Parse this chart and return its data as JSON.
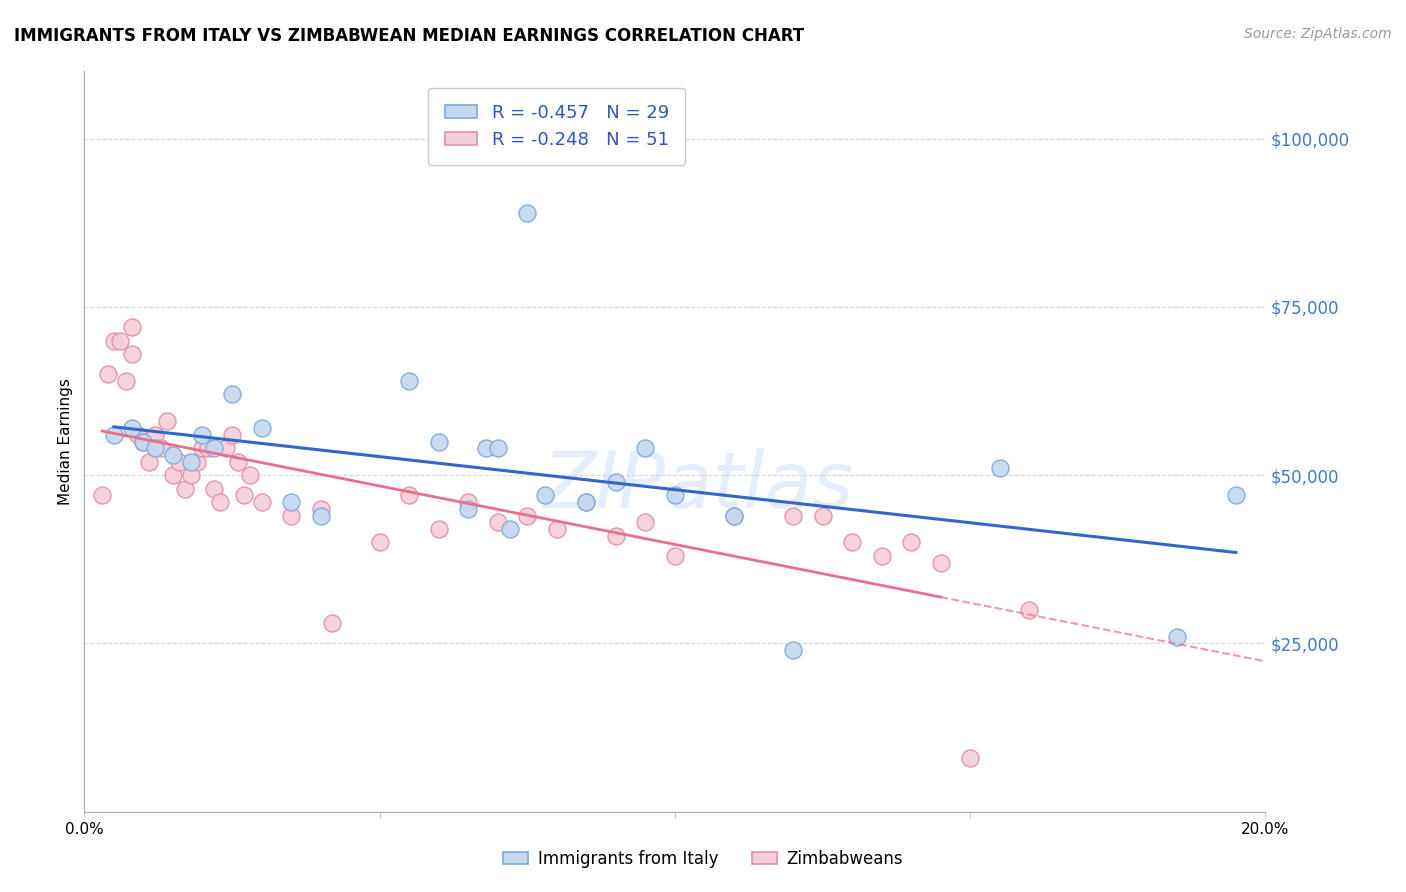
{
  "title": "IMMIGRANTS FROM ITALY VS ZIMBABWEAN MEDIAN EARNINGS CORRELATION CHART",
  "source": "Source: ZipAtlas.com",
  "ylabel": "Median Earnings",
  "xlim": [
    0,
    0.2
  ],
  "ylim": [
    0,
    110000
  ],
  "yticks": [
    0,
    25000,
    50000,
    75000,
    100000
  ],
  "ytick_labels": [
    "",
    "$25,000",
    "$50,000",
    "$75,000",
    "$100,000"
  ],
  "xticks": [
    0.0,
    0.05,
    0.1,
    0.15,
    0.2
  ],
  "xtick_labels": [
    "0.0%",
    "",
    "",
    "",
    "20.0%"
  ],
  "background_color": "#ffffff",
  "grid_color": "#d8d8d8",
  "italy_fill_color": "#c5d8f0",
  "italy_edge_color": "#7baad8",
  "zimbabwe_fill_color": "#f5cdd8",
  "zimbabwe_edge_color": "#e090a8",
  "italy_line_color": "#3366cc",
  "zimbabwe_line_color": "#e8708a",
  "italy_R": -0.457,
  "italy_N": 29,
  "zimbabwe_R": -0.248,
  "zimbabwe_N": 51,
  "watermark": "ZIPatlas",
  "legend_label_italy": "Immigrants from Italy",
  "legend_label_zimbabwe": "Zimbabweans",
  "italy_x": [
    0.005,
    0.008,
    0.01,
    0.012,
    0.015,
    0.018,
    0.02,
    0.022,
    0.025,
    0.03,
    0.035,
    0.04,
    0.055,
    0.06,
    0.065,
    0.068,
    0.07,
    0.072,
    0.075,
    0.078,
    0.085,
    0.09,
    0.095,
    0.1,
    0.11,
    0.12,
    0.155,
    0.185,
    0.195
  ],
  "italy_y": [
    56000,
    57000,
    55000,
    54000,
    53000,
    52000,
    56000,
    54000,
    62000,
    57000,
    46000,
    44000,
    64000,
    55000,
    45000,
    54000,
    54000,
    42000,
    89000,
    47000,
    46000,
    49000,
    54000,
    47000,
    44000,
    24000,
    51000,
    26000,
    47000
  ],
  "zimbabwe_x": [
    0.003,
    0.004,
    0.005,
    0.006,
    0.007,
    0.008,
    0.008,
    0.009,
    0.01,
    0.011,
    0.012,
    0.013,
    0.014,
    0.015,
    0.016,
    0.017,
    0.018,
    0.019,
    0.02,
    0.021,
    0.022,
    0.023,
    0.024,
    0.025,
    0.026,
    0.027,
    0.028,
    0.03,
    0.035,
    0.04,
    0.042,
    0.05,
    0.055,
    0.06,
    0.065,
    0.07,
    0.075,
    0.08,
    0.085,
    0.09,
    0.095,
    0.1,
    0.11,
    0.12,
    0.125,
    0.13,
    0.135,
    0.14,
    0.145,
    0.15,
    0.16
  ],
  "zimbabwe_y": [
    47000,
    65000,
    70000,
    70000,
    64000,
    68000,
    72000,
    56000,
    55000,
    52000,
    56000,
    54000,
    58000,
    50000,
    52000,
    48000,
    50000,
    52000,
    54000,
    54000,
    48000,
    46000,
    54000,
    56000,
    52000,
    47000,
    50000,
    46000,
    44000,
    45000,
    28000,
    40000,
    47000,
    42000,
    46000,
    43000,
    44000,
    42000,
    46000,
    41000,
    43000,
    38000,
    44000,
    44000,
    44000,
    40000,
    38000,
    40000,
    37000,
    8000,
    30000
  ]
}
